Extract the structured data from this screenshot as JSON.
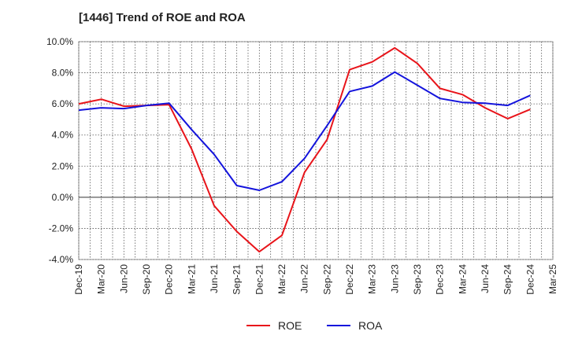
{
  "chart_data": {
    "type": "line",
    "title": "[1446]  Trend of ROE and ROA",
    "xlabel": "",
    "ylabel": "",
    "ylim": [
      -4.0,
      10.0
    ],
    "y_ticks": [
      "10.0%",
      "8.0%",
      "6.0%",
      "4.0%",
      "2.0%",
      "0.0%",
      "-2.0%",
      "-4.0%"
    ],
    "x_ticks": [
      "Dec-19",
      "Mar-20",
      "Jun-20",
      "Sep-20",
      "Dec-20",
      "Mar-21",
      "Jun-21",
      "Sep-21",
      "Dec-21",
      "Mar-22",
      "Jun-22",
      "Sep-22",
      "Dec-22",
      "Mar-23",
      "Jun-23",
      "Sep-23",
      "Dec-23",
      "Mar-24",
      "Jun-24",
      "Sep-24",
      "Dec-24",
      "Mar-25"
    ],
    "grid": true,
    "legend_position": "bottom-center",
    "series": [
      {
        "name": "ROE",
        "color": "#e8141a",
        "values": [
          6.0,
          6.3,
          5.85,
          5.9,
          5.95,
          3.1,
          -0.55,
          -2.2,
          -3.5,
          -2.45,
          1.6,
          3.7,
          8.2,
          8.7,
          9.6,
          8.6,
          7.0,
          6.6,
          5.75,
          5.05,
          5.65,
          null
        ]
      },
      {
        "name": "ROA",
        "color": "#1414dc",
        "values": [
          5.6,
          5.75,
          5.7,
          5.9,
          6.05,
          4.35,
          2.75,
          0.75,
          0.45,
          1.0,
          2.5,
          4.6,
          6.8,
          7.15,
          8.05,
          7.2,
          6.35,
          6.1,
          6.05,
          5.9,
          6.55,
          null
        ]
      }
    ]
  }
}
